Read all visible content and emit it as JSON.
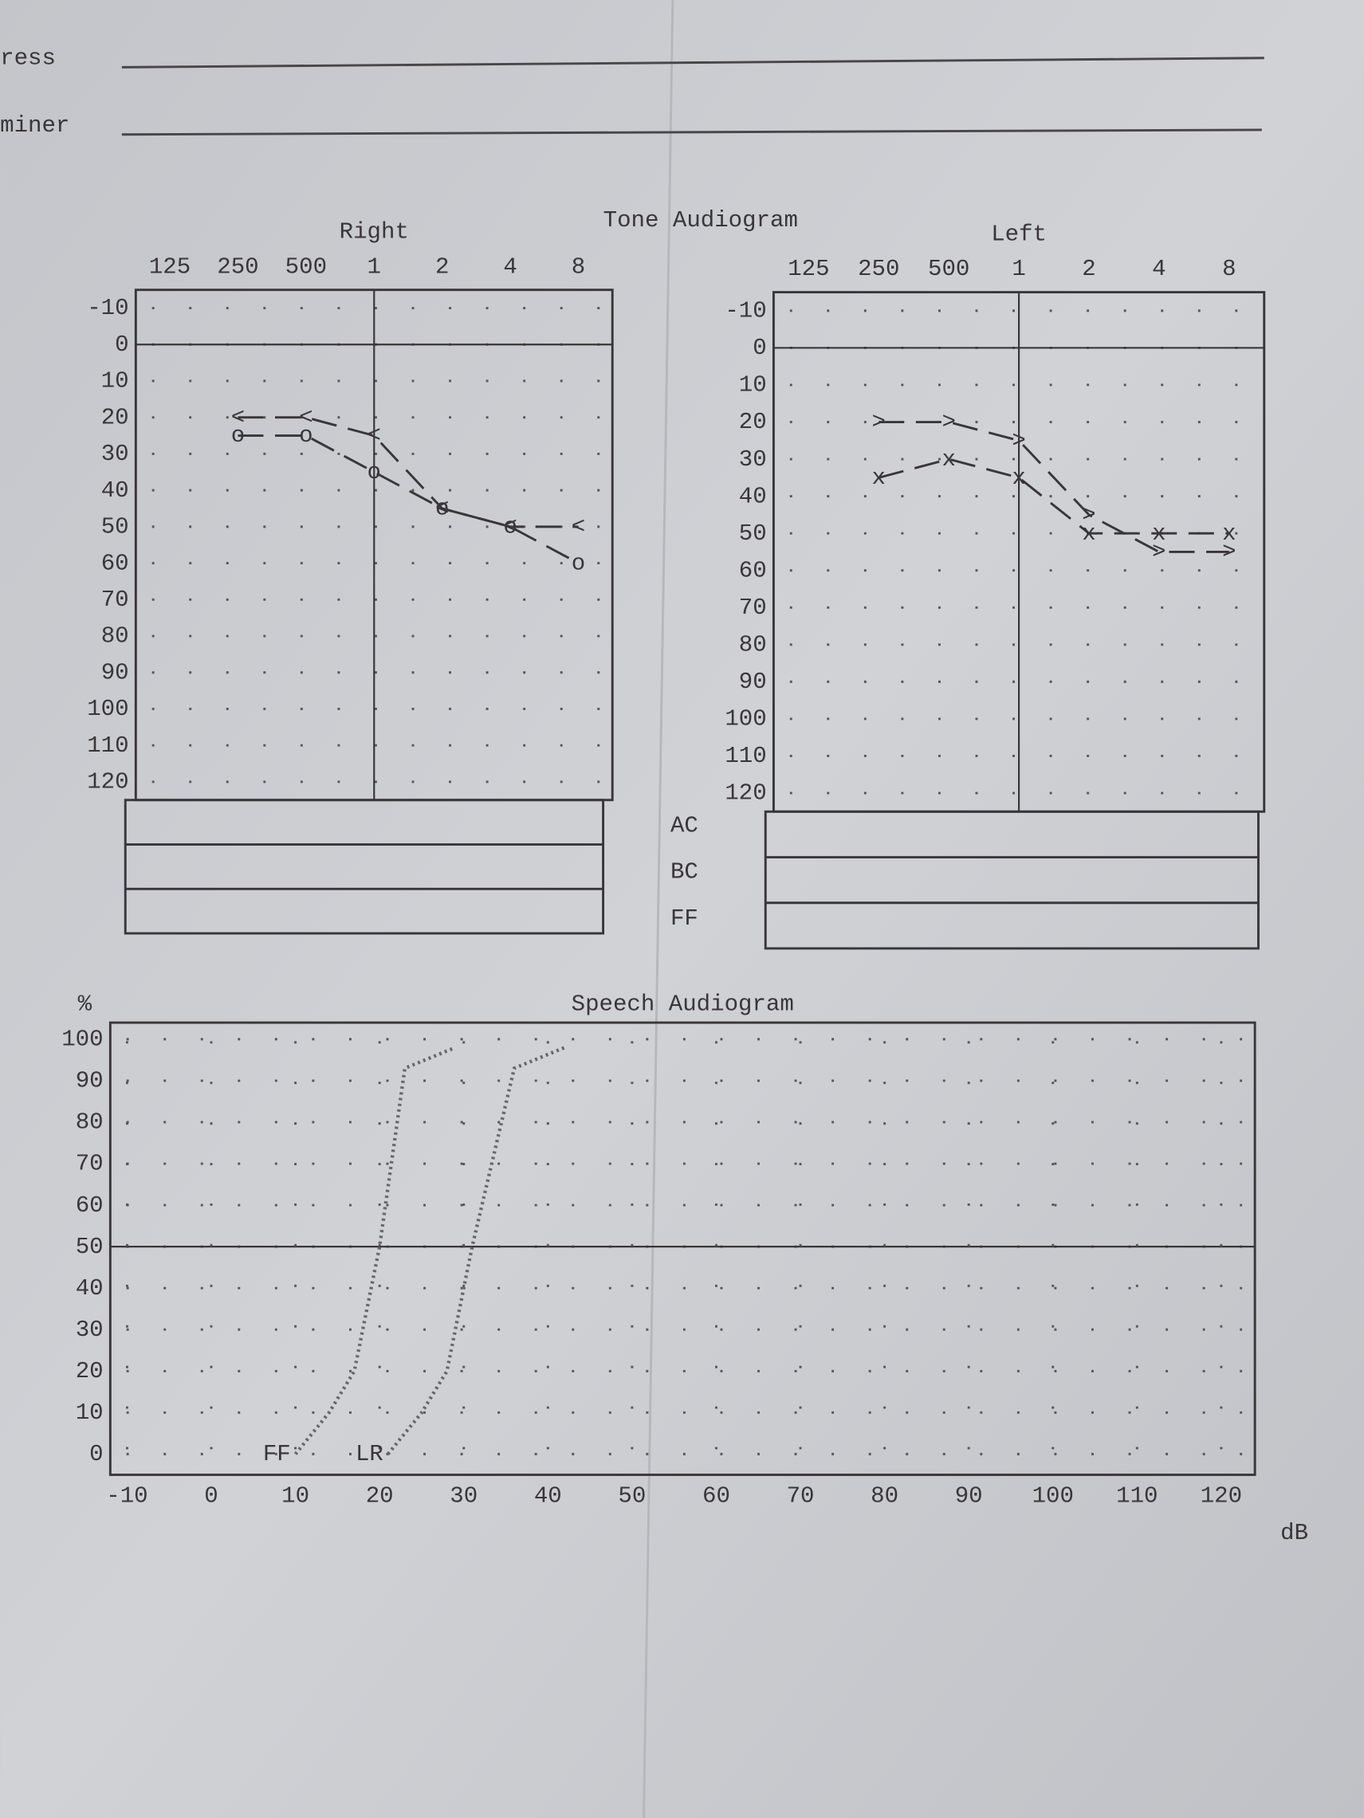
{
  "form": {
    "fields": [
      "ress",
      "miner"
    ]
  },
  "tone_rows": [
    "AC",
    "BC",
    "FF"
  ],
  "chart_data": [
    {
      "type": "line",
      "title": "Tone Audiogram",
      "subtitle": "Right",
      "categories": [
        "125",
        "250",
        "500",
        "1",
        "2",
        "4",
        "8"
      ],
      "series": [
        {
          "marker": "o",
          "color": "#3a3538",
          "values": [
            null,
            25,
            25,
            35,
            45,
            50,
            60
          ]
        },
        {
          "marker": "<",
          "color": "#3a3538",
          "values": [
            null,
            20,
            20,
            25,
            45,
            50,
            50
          ]
        }
      ],
      "ylim": [
        -15,
        125
      ],
      "yticks": [
        -10,
        0,
        10,
        20,
        30,
        40,
        50,
        60,
        70,
        80,
        90,
        100,
        110,
        120
      ],
      "y_inverted": true,
      "grid": true,
      "ref_y": 0,
      "ref_x": "1"
    },
    {
      "type": "line",
      "subtitle": "Left",
      "categories": [
        "125",
        "250",
        "500",
        "1",
        "2",
        "4",
        "8"
      ],
      "series": [
        {
          "marker": "x",
          "color": "#3a3538",
          "values": [
            null,
            35,
            30,
            35,
            50,
            50,
            50
          ]
        },
        {
          "marker": ">",
          "color": "#3a3538",
          "values": [
            null,
            20,
            20,
            25,
            45,
            55,
            55
          ]
        }
      ],
      "ylim": [
        -15,
        125
      ],
      "yticks": [
        -10,
        0,
        10,
        20,
        30,
        40,
        50,
        60,
        70,
        80,
        90,
        100,
        110,
        120
      ],
      "y_inverted": true,
      "grid": true,
      "ref_y": 0,
      "ref_x": "1"
    },
    {
      "type": "line",
      "title": "Speech Audiogram",
      "ylabel": "%",
      "xlabel": "dB",
      "series": [
        {
          "name": "FF",
          "color": "#6a6568",
          "x": [
            10,
            14,
            17,
            20,
            23,
            29
          ],
          "values": [
            0,
            10,
            20,
            50,
            93,
            98
          ]
        },
        {
          "name": "LR",
          "color": "#6a6568",
          "x": [
            21,
            25,
            28,
            31,
            36,
            42
          ],
          "values": [
            0,
            10,
            20,
            50,
            93,
            98
          ]
        }
      ],
      "xlim": [
        -12,
        124
      ],
      "xticks": [
        -10,
        0,
        10,
        20,
        30,
        40,
        50,
        60,
        70,
        80,
        90,
        100,
        110,
        120
      ],
      "ylim": [
        -5,
        104
      ],
      "yticks": [
        0,
        10,
        20,
        30,
        40,
        50,
        60,
        70,
        80,
        90,
        100
      ],
      "grid": true,
      "ref_y": 50
    }
  ]
}
